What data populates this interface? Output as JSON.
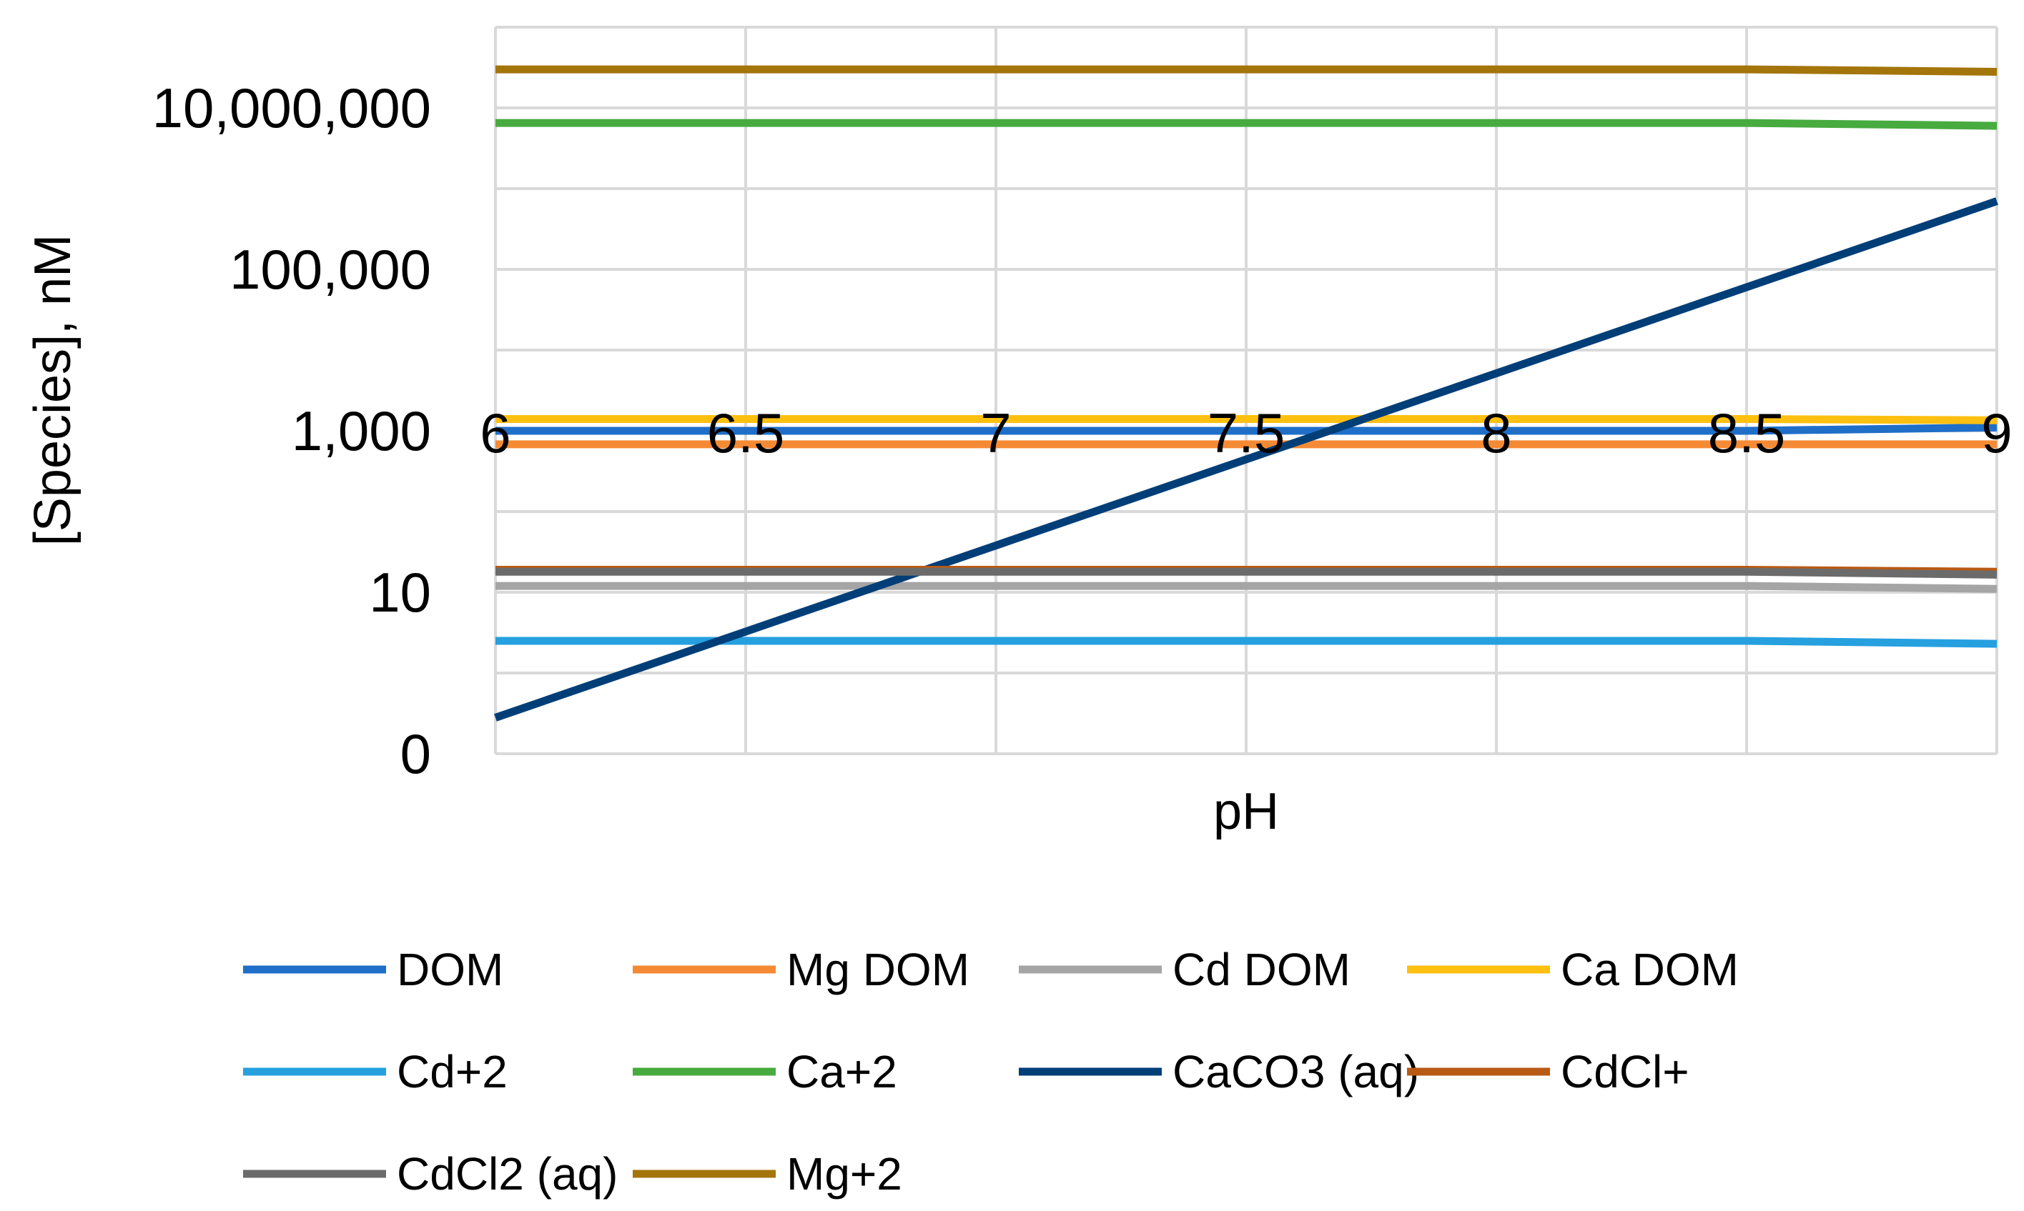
{
  "chart_data": {
    "type": "line",
    "title": "",
    "xlabel": "pH",
    "ylabel": "[Species], nM",
    "xlim": [
      6,
      9
    ],
    "y_scale": "log",
    "ylim_log10": [
      -1,
      8
    ],
    "x_ticks": [
      "6",
      "6.5",
      "7",
      "7.5",
      "8",
      "8.5",
      "9"
    ],
    "y_ticks": [
      {
        "label": "0",
        "value": 0.1
      },
      {
        "label": "10",
        "value": 10
      },
      {
        "label": "1,000",
        "value": 1000
      },
      {
        "label": "100,000",
        "value": 100000
      },
      {
        "label": "10,000,000",
        "value": 10000000
      }
    ],
    "gridlines": "vertical at each x tick; horizontal every decade",
    "legend_position": "bottom",
    "series": [
      {
        "name": "DOM",
        "color": "#1f6fc9",
        "x": [
          6,
          8.5,
          9
        ],
        "y": [
          1000,
          1000,
          1100
        ]
      },
      {
        "name": "Mg DOM",
        "color": "#f58a35",
        "x": [
          6,
          9
        ],
        "y": [
          680,
          680
        ]
      },
      {
        "name": "Cd DOM",
        "color": "#a5a5a5",
        "x": [
          6,
          8.5,
          9
        ],
        "y": [
          12,
          12,
          11
        ]
      },
      {
        "name": "Ca DOM",
        "color": "#fdc010",
        "x": [
          6,
          8.5,
          9
        ],
        "y": [
          1400,
          1400,
          1350
        ]
      },
      {
        "name": "Cd+2",
        "color": "#26a0df",
        "x": [
          6,
          8.5,
          9
        ],
        "y": [
          2.5,
          2.5,
          2.3
        ]
      },
      {
        "name": "Ca+2",
        "color": "#47ab3f",
        "x": [
          6,
          8.5,
          9
        ],
        "y": [
          6500000,
          6500000,
          6000000
        ]
      },
      {
        "name": "CaCO3 (aq)",
        "color": "#003e78",
        "x": [
          6,
          9
        ],
        "y": [
          0.28,
          700000
        ]
      },
      {
        "name": "CdCl+",
        "color": "#b85a14",
        "x": [
          6,
          8.5,
          9
        ],
        "y": [
          19,
          19,
          18
        ]
      },
      {
        "name": "CdCl2 (aq)",
        "color": "#6b6b6b",
        "x": [
          6,
          8.5,
          9
        ],
        "y": [
          18,
          18,
          16.5
        ]
      },
      {
        "name": "Mg+2",
        "color": "#a3750a",
        "x": [
          6,
          8.5,
          9
        ],
        "y": [
          30000000,
          30000000,
          28000000
        ]
      }
    ]
  }
}
